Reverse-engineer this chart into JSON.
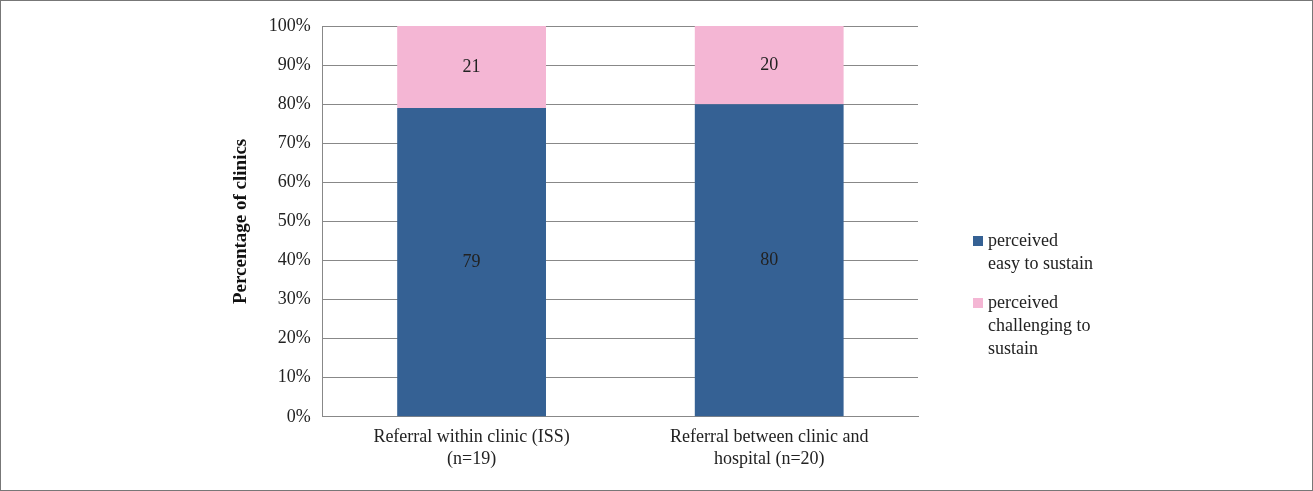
{
  "chart_data": {
    "type": "bar",
    "stacked": true,
    "ylabel": "Percentage of clinics",
    "categories": [
      "Referral within clinic (ISS)\n(n=19)",
      "Referral between clinic and\nhospital (n=20)"
    ],
    "series": [
      {
        "name": "perceived easy to sustain",
        "color": "#356194",
        "values": [
          79,
          80
        ]
      },
      {
        "name": "perceived challenging to sustain",
        "color": "#f4b6d4",
        "values": [
          21,
          20
        ]
      }
    ],
    "ylim": [
      0,
      100
    ],
    "yticks": [
      {
        "value": 0,
        "label": "0%"
      },
      {
        "value": 10,
        "label": "10%"
      },
      {
        "value": 20,
        "label": "20%"
      },
      {
        "value": 30,
        "label": "30%"
      },
      {
        "value": 40,
        "label": "40%"
      },
      {
        "value": 50,
        "label": "50%"
      },
      {
        "value": 60,
        "label": "60%"
      },
      {
        "value": 70,
        "label": "70%"
      },
      {
        "value": 80,
        "label": "80%"
      },
      {
        "value": 90,
        "label": "90%"
      },
      {
        "value": 100,
        "label": "100%"
      }
    ],
    "grid": "y",
    "legend": "right",
    "data_labels": true
  }
}
